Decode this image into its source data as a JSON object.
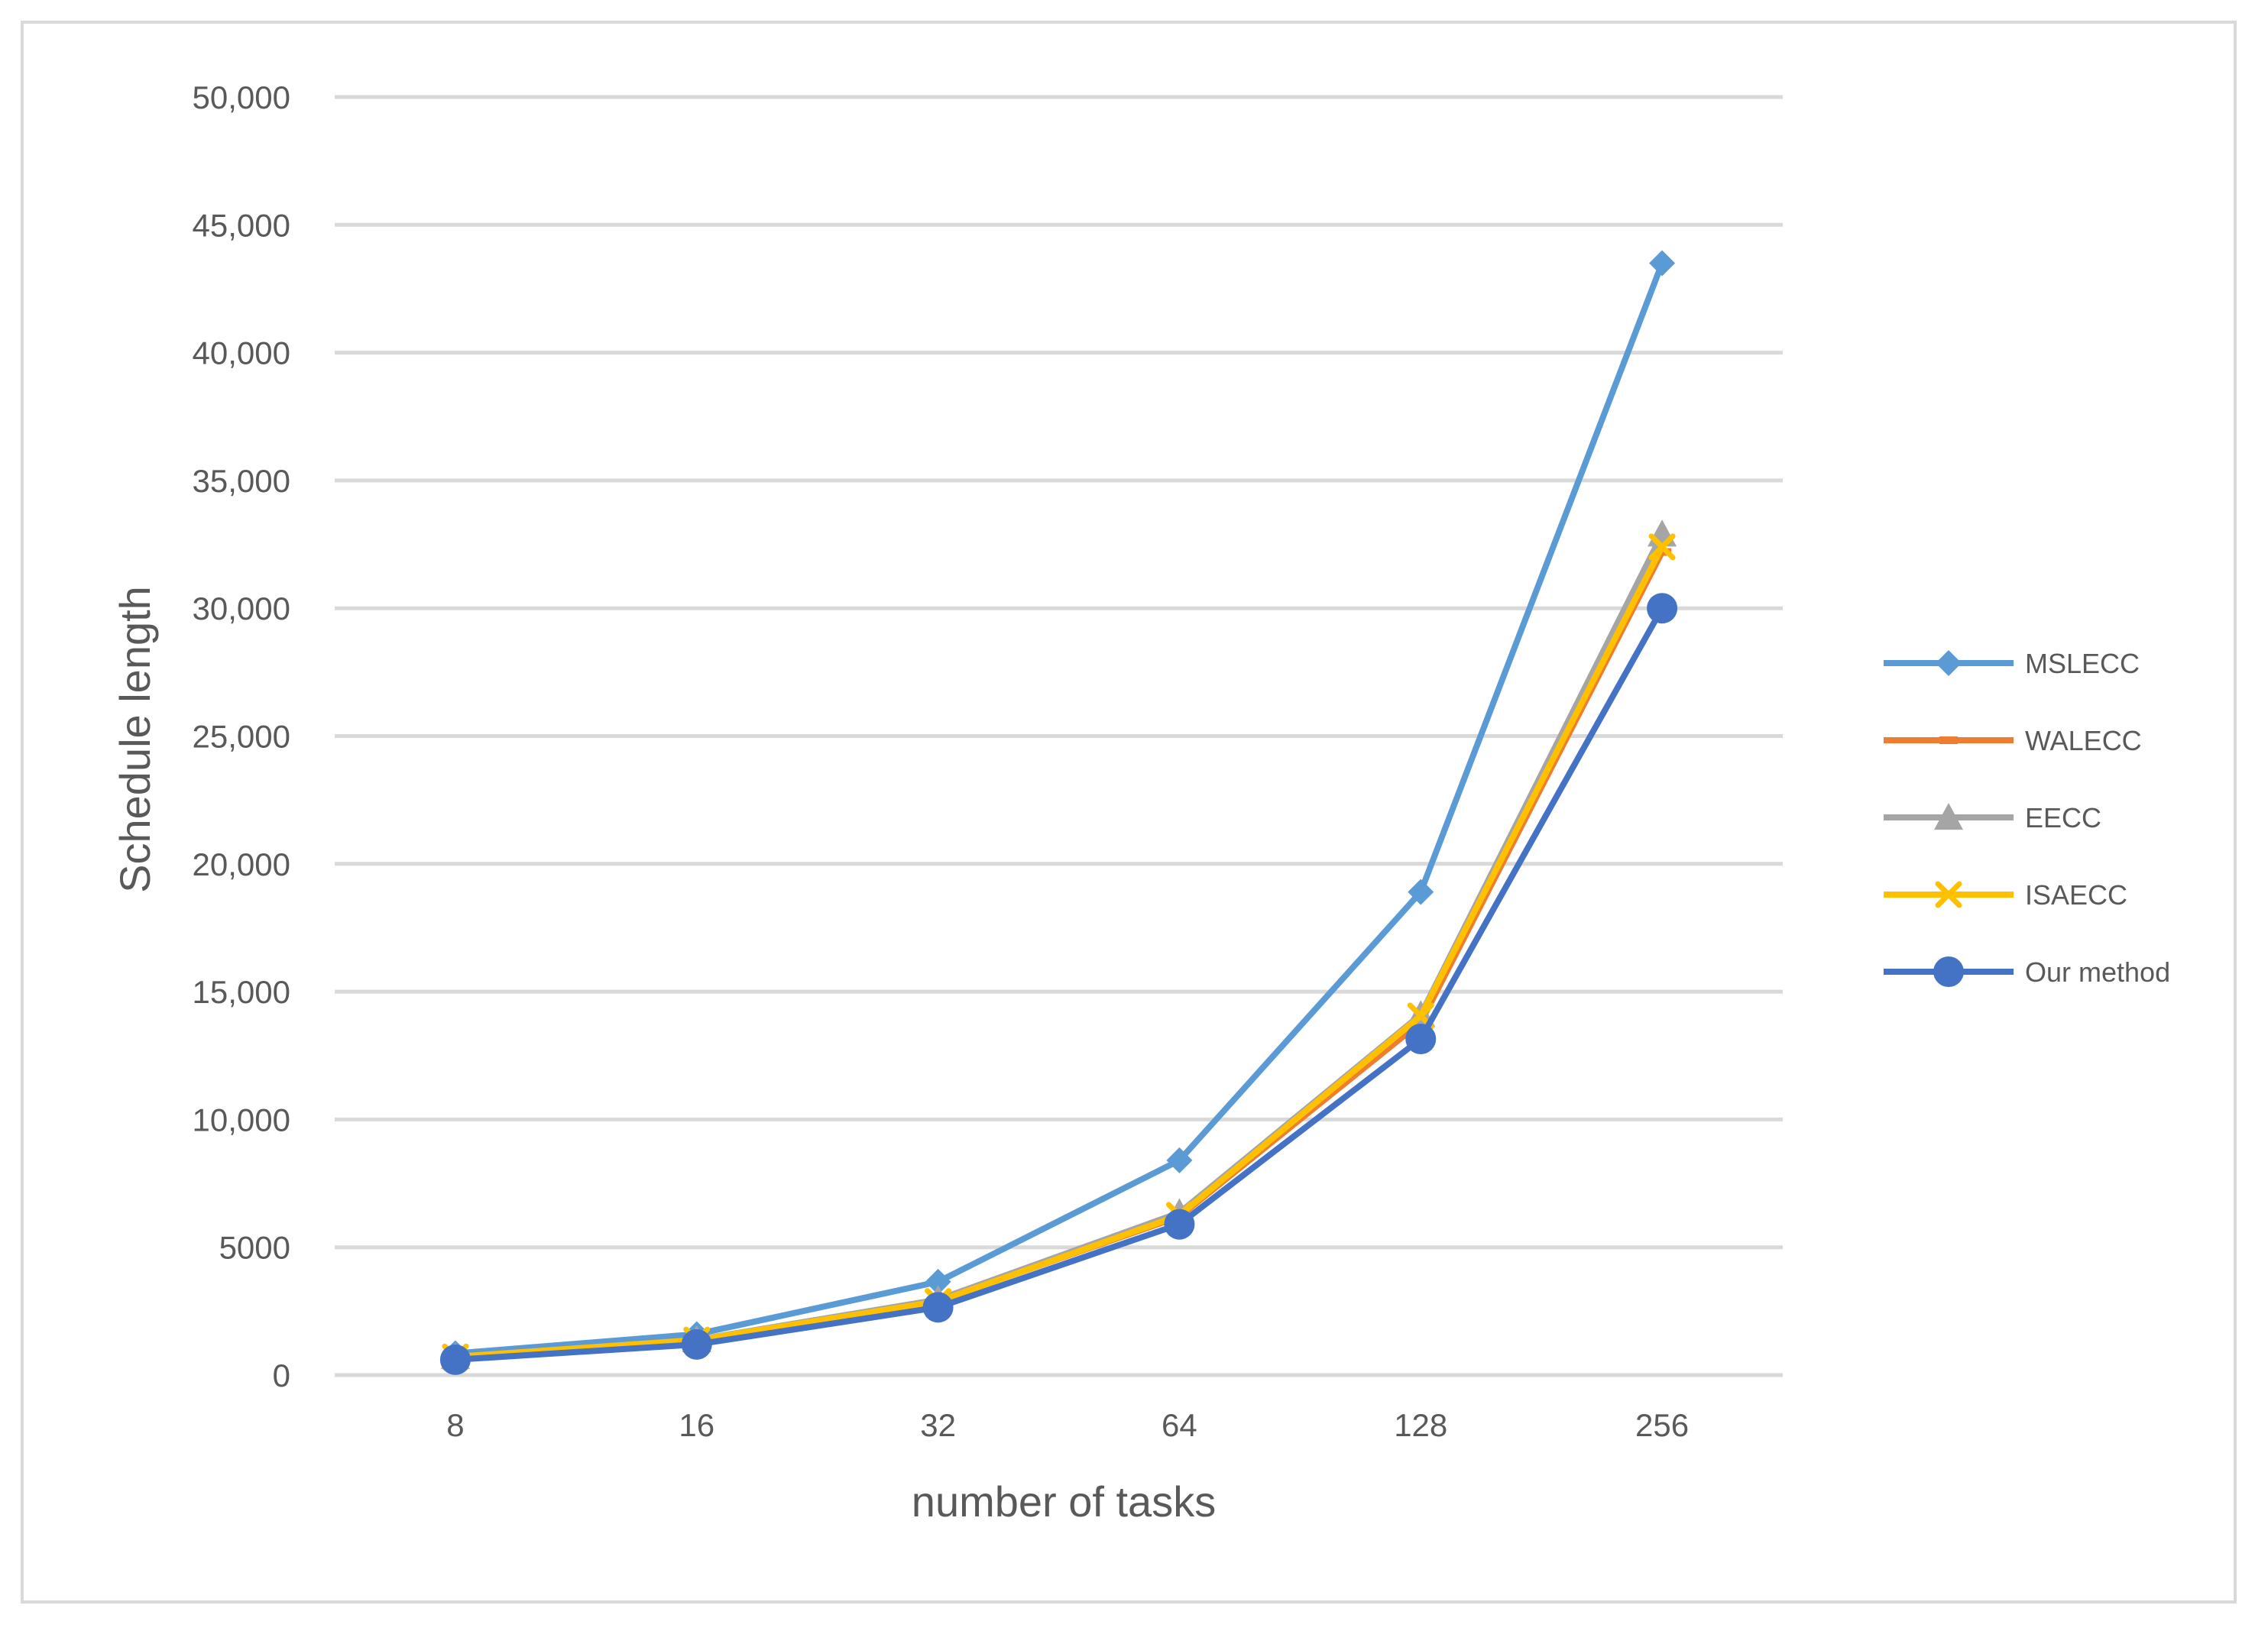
{
  "chart_data": {
    "type": "line",
    "xlabel": "number of tasks",
    "ylabel": "Schedule length",
    "categories": [
      "8",
      "16",
      "32",
      "64",
      "128",
      "256"
    ],
    "ylim": [
      0,
      50000
    ],
    "yticks": [
      0,
      5000,
      10000,
      15000,
      20000,
      25000,
      30000,
      35000,
      40000,
      45000,
      50000
    ],
    "ytick_labels": [
      "0",
      "5000",
      "10,000",
      "15,000",
      "20,000",
      "25,000",
      "30,000",
      "35,000",
      "40,000",
      "45,000",
      "50,000"
    ],
    "grid": "horizontal",
    "legend_position": "right",
    "series": [
      {
        "name": "MSLECC",
        "color": "#5b9bd5",
        "marker": "diamond",
        "values": [
          850,
          1600,
          3650,
          8400,
          18900,
          43500
        ]
      },
      {
        "name": "WALECC",
        "color": "#ed7d31",
        "marker": "dash",
        "values": [
          700,
          1350,
          2900,
          6200,
          13800,
          32200
        ]
      },
      {
        "name": "EECC",
        "color": "#a5a5a5",
        "marker": "triangle",
        "values": [
          720,
          1380,
          2950,
          6350,
          14100,
          32900
        ]
      },
      {
        "name": "ISAECC",
        "color": "#ffc000",
        "marker": "cross",
        "values": [
          710,
          1370,
          2880,
          6250,
          14050,
          32400
        ]
      },
      {
        "name": "Our method",
        "color": "#4472c4",
        "marker": "circle",
        "values": [
          600,
          1200,
          2650,
          5900,
          13150,
          30000
        ]
      }
    ]
  }
}
